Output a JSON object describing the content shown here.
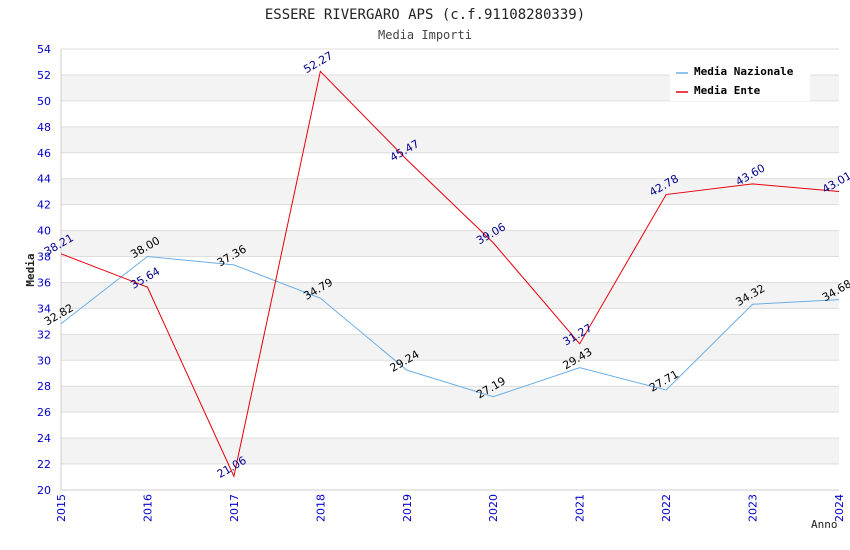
{
  "chart_data": {
    "type": "line",
    "title": "ESSERE RIVERGARO APS (c.f.91108280339)",
    "subtitle": "Media Importi",
    "xlabel": "Anno",
    "ylabel": "Media",
    "x": [
      "2015",
      "2016",
      "2017",
      "2018",
      "2019",
      "2020",
      "2021",
      "2022",
      "2023",
      "2024"
    ],
    "ylim": [
      20,
      54
    ],
    "yticks": [
      20,
      22,
      24,
      26,
      28,
      30,
      32,
      34,
      36,
      38,
      40,
      42,
      44,
      46,
      48,
      50,
      52,
      54
    ],
    "ytick_labels": [
      "20",
      "22",
      "24",
      "26",
      "28",
      "30",
      "32",
      "34",
      "36",
      "38",
      "40",
      "42",
      "44",
      "46",
      "48",
      "50",
      "52",
      "54"
    ],
    "grid": true,
    "legend_position": "top-right",
    "series": [
      {
        "name": "Media Nazionale",
        "color": "#6aaee6",
        "label_color": "#000000",
        "values": [
          32.82,
          38.0,
          37.36,
          34.79,
          29.24,
          27.19,
          29.43,
          27.71,
          34.32,
          34.68
        ],
        "labels": [
          "32.82",
          "38.00",
          "37.36",
          "34.79",
          "29.24",
          "27.19",
          "29.43",
          "27.71",
          "34.32",
          "34.68"
        ]
      },
      {
        "name": "Media Ente",
        "color": "#e8000b",
        "label_color": "#00008b",
        "values": [
          38.21,
          35.64,
          21.06,
          52.27,
          45.47,
          39.06,
          31.27,
          42.78,
          43.6,
          43.01
        ],
        "labels": [
          "38.21",
          "35.64",
          "21.06",
          "52.27",
          "45.47",
          "39.06",
          "31.27",
          "42.78",
          "43.60",
          "43.01"
        ]
      }
    ]
  }
}
